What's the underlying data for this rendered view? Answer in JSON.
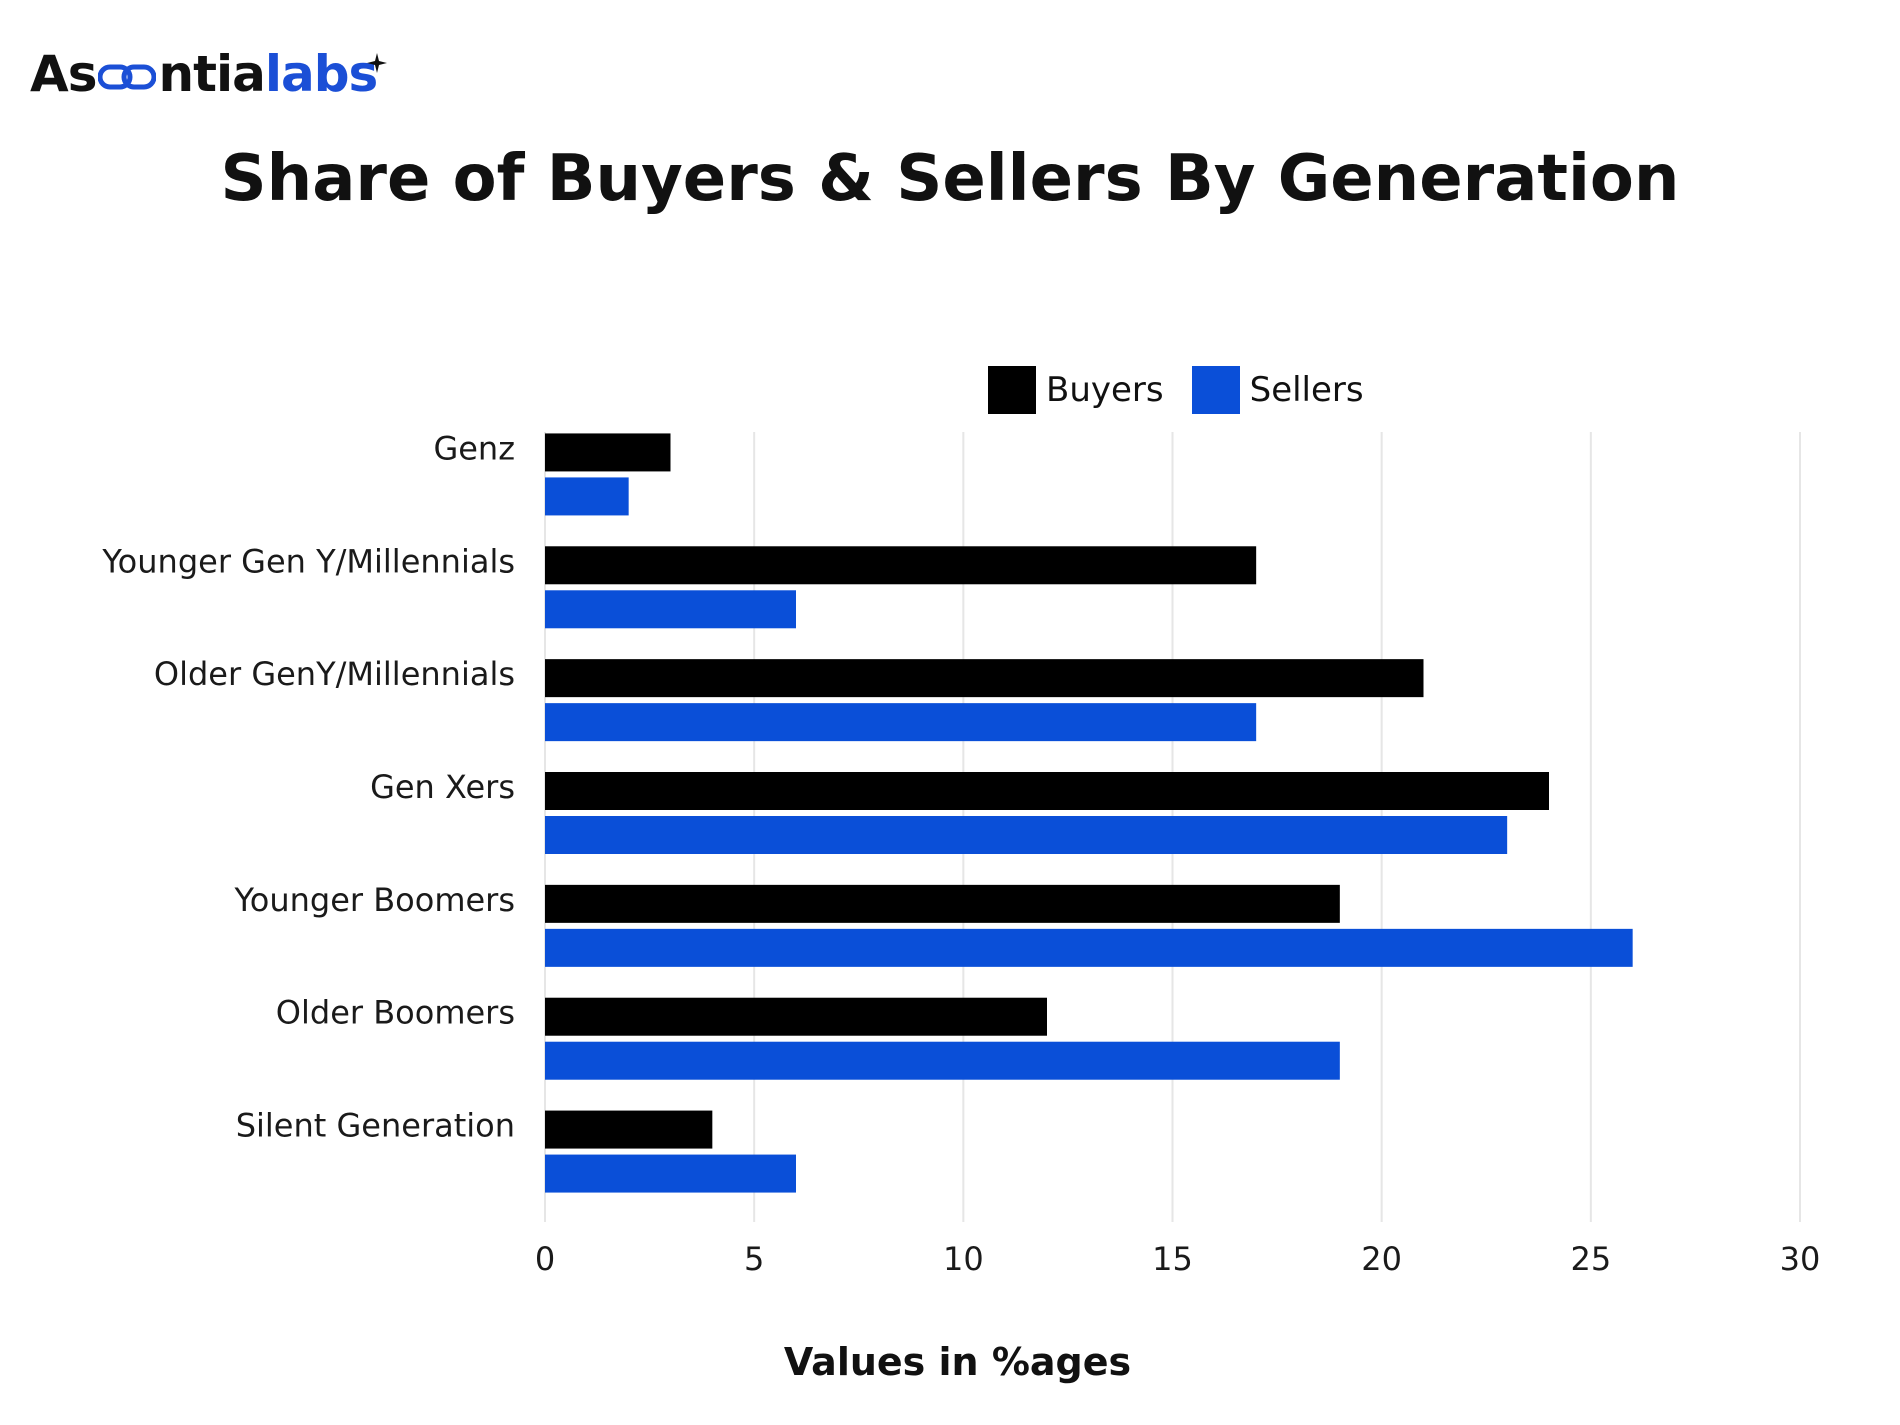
{
  "logo": {
    "text_dark": "As",
    "text_rest_dark": "ntia",
    "text_blue": "labs",
    "full": "Ascentialabs"
  },
  "chart_data": {
    "type": "bar",
    "orientation": "horizontal",
    "title": "Share of Buyers & Sellers By Generation",
    "xlabel": "Values in %ages",
    "ylabel": "",
    "categories": [
      "Genz",
      "Younger Gen Y/Millennials",
      "Older GenY/Millennials",
      "Gen Xers",
      "Younger Boomers",
      "Older Boomers",
      "Silent Generation"
    ],
    "series": [
      {
        "name": "Buyers",
        "color": "#000000",
        "values": [
          3,
          17,
          21,
          24,
          19,
          12,
          4
        ]
      },
      {
        "name": "Sellers",
        "color": "#0a4fd8",
        "values": [
          2,
          6,
          17,
          23,
          26,
          19,
          6
        ]
      }
    ],
    "xlim": [
      0,
      30
    ],
    "xticks": [
      0,
      5,
      10,
      15,
      20,
      25,
      30
    ],
    "grid": true,
    "legend_position": "top"
  }
}
